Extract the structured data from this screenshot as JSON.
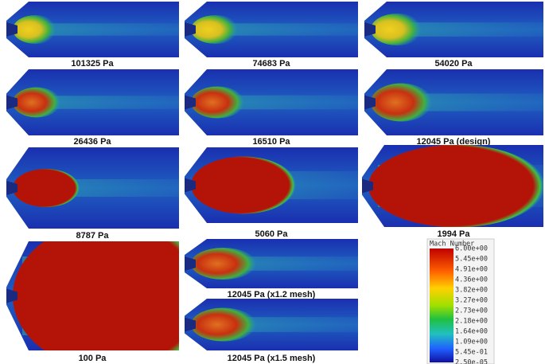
{
  "panels": [
    {
      "label": "101325 Pa"
    },
    {
      "label": "74683 Pa"
    },
    {
      "label": "54020 Pa"
    },
    {
      "label": "26436 Pa"
    },
    {
      "label": "16510 Pa"
    },
    {
      "label": "12045 Pa (design)"
    },
    {
      "label": "8787 Pa"
    },
    {
      "label": "5060 Pa"
    },
    {
      "label": "1994 Pa"
    },
    {
      "label": "100 Pa"
    },
    {
      "label": "12045 Pa (x1.2 mesh)"
    },
    {
      "label": "12045 Pa (x1.5 mesh)"
    }
  ],
  "colorbar": {
    "title": "Mach Number",
    "labels": [
      "6.00e+00",
      "5.45e+00",
      "4.91e+00",
      "4.36e+00",
      "3.82e+00",
      "3.27e+00",
      "2.73e+00",
      "2.18e+00",
      "1.64e+00",
      "1.09e+00",
      "5.45e-01",
      "2.50e-05"
    ]
  }
}
